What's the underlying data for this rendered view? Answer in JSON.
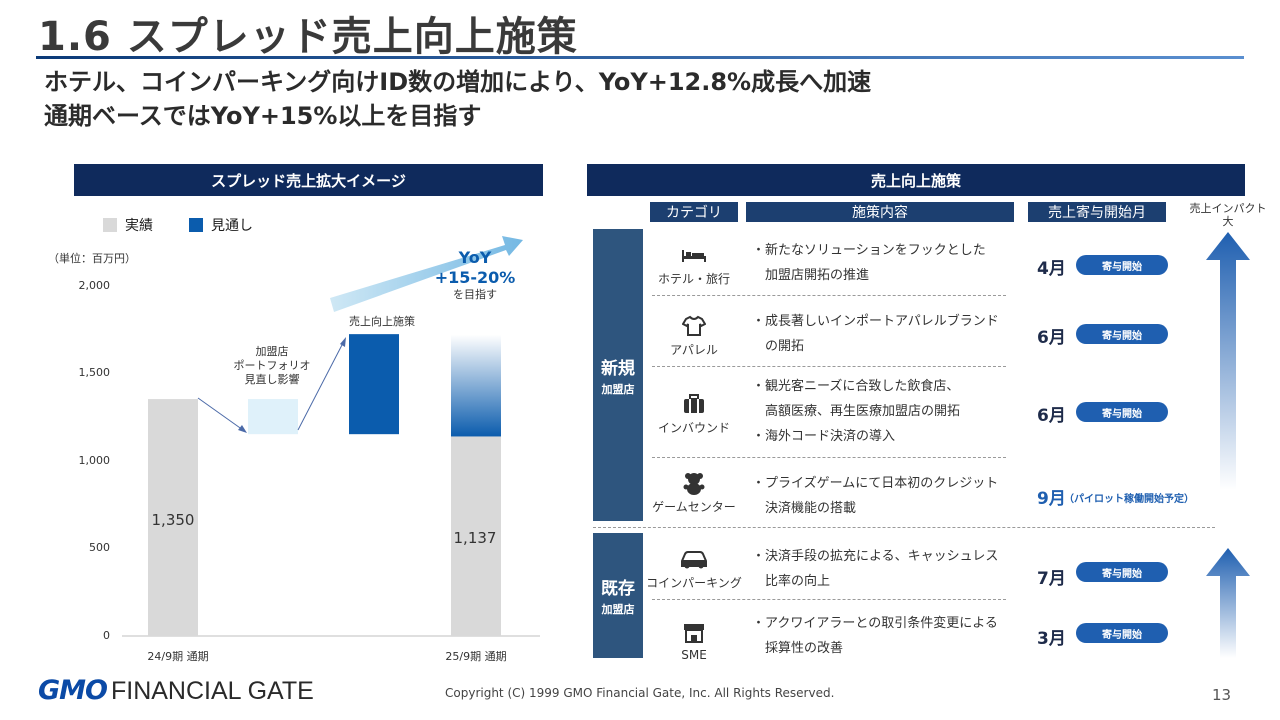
{
  "header": {
    "title": "1.6  スプレッド売上向上施策",
    "subtitle1": "ホテル、コインパーキング向けID数の増加により、YoY+12.8%成長へ加速",
    "subtitle2": "通期ベースではYoY+15%以上を目指す"
  },
  "left": {
    "band": "スプレッド売上拡大イメージ",
    "legend_actual": "実績",
    "legend_forecast": "見通し",
    "unit": "（単位：百万円）",
    "yoy_line1": "YoY",
    "yoy_line2": "+15-20%",
    "yoy_line3": "を目指す",
    "annot_portfolio_1": "加盟店",
    "annot_portfolio_2": "ポートフォリオ",
    "annot_portfolio_3": "見直し影響",
    "annot_measures": "売上向上施策",
    "val_first": "1,350",
    "val_last": "1,137"
  },
  "chart_data": {
    "type": "bar",
    "subtype": "waterfall",
    "categories": [
      "24/9期 通期",
      "",
      "",
      "25/9期 通期"
    ],
    "series": [
      {
        "name": "実績",
        "values": [
          1350,
          null,
          null,
          1137
        ]
      },
      {
        "name": "見通し",
        "values": [
          null,
          -200,
          570,
          580
        ]
      }
    ],
    "bars": [
      {
        "base": 0,
        "top": 1350
      },
      {
        "base": 1150,
        "top": 1350
      },
      {
        "base": 1150,
        "top": 1720
      },
      {
        "base": 1137,
        "top": 1717
      }
    ],
    "yticks": [
      "0",
      "500",
      "1,000",
      "1,500",
      "2,000"
    ],
    "ylim": [
      0,
      2000
    ],
    "colors": {
      "actual": "#d9d9d9",
      "decline": "#dff1fa",
      "increase": "#0b5cad",
      "forecast_top": "#0b5cad"
    }
  },
  "right": {
    "band": "売上向上施策",
    "col_category": "カテゴリ",
    "col_content": "施策内容",
    "col_month": "売上寄与開始月",
    "impact_1": "売上インパクト",
    "impact_2": "大",
    "new_big": "新規",
    "new_small": "加盟店",
    "exist_big": "既存",
    "exist_small": "加盟店",
    "rows": [
      {
        "icon": "bed-icon",
        "category": "ホテル・旅行",
        "lines": [
          "・新たなソリューションをフックとした",
          "　加盟店開拓の推進"
        ],
        "month": "4月",
        "badge": "寄与開始"
      },
      {
        "icon": "tshirt-icon",
        "category": "アパレル",
        "lines": [
          "・成長著しいインポートアパレルブランド",
          "　の開拓"
        ],
        "month": "6月",
        "badge": "寄与開始"
      },
      {
        "icon": "suitcase-icon",
        "category": "インバウンド",
        "lines": [
          "・観光客ニーズに合致した飲食店、",
          "　高額医療、再生医療加盟店の開拓",
          "・海外コード決済の導入"
        ],
        "month": "6月",
        "badge": "寄与開始"
      },
      {
        "icon": "teddy-bear-icon",
        "category": "ゲームセンター",
        "lines": [
          "・プライズゲームにて日本初のクレジット",
          "　決済機能の搭載"
        ],
        "month": "9月",
        "badge": "（パイロット稼働開始予定）"
      },
      {
        "icon": "car-icon",
        "category": "コインパーキング",
        "lines": [
          "・決済手段の拡充による、キャッシュレス",
          "　比率の向上"
        ],
        "month": "7月",
        "badge": "寄与開始"
      },
      {
        "icon": "store-icon",
        "category": "SME",
        "lines": [
          "・アクワイアラーとの取引条件変更による",
          "　採算性の改善"
        ],
        "month": "3月",
        "badge": "寄与開始"
      }
    ]
  },
  "footer": {
    "logo_gmo": "GMO",
    "logo_rest": "FINANCIAL GATE",
    "copyright": "Copyright (C) 1999 GMO Financial Gate, Inc. All Rights Reserved.",
    "page": "13"
  }
}
